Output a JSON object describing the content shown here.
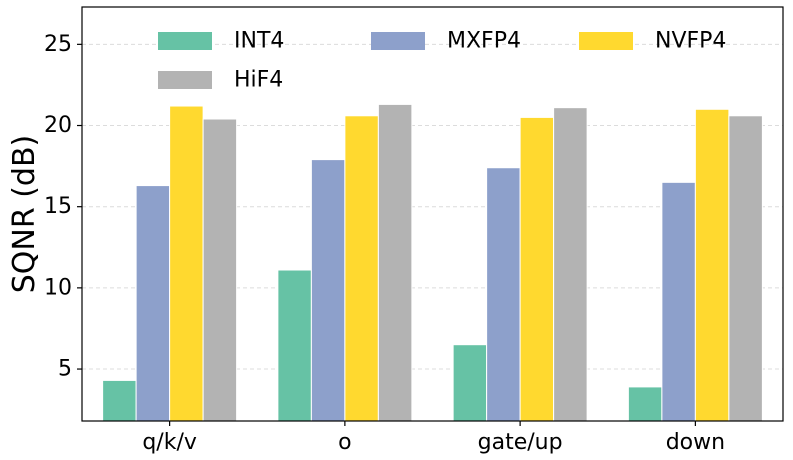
{
  "chart_data": {
    "type": "bar",
    "categories": [
      "q/k/v",
      "o",
      "gate/up",
      "down"
    ],
    "series": [
      {
        "name": "INT4",
        "color": "#66c2a5",
        "values": [
          4.3,
          11.1,
          6.5,
          3.9
        ]
      },
      {
        "name": "MXFP4",
        "color": "#8da0cb",
        "values": [
          16.3,
          17.9,
          17.4,
          16.5
        ]
      },
      {
        "name": "NVFP4",
        "color": "#ffd92f",
        "values": [
          21.2,
          20.6,
          20.5,
          21.0
        ]
      },
      {
        "name": "HiF4",
        "color": "#b3b3b3",
        "values": [
          20.4,
          21.3,
          21.1,
          20.6
        ]
      }
    ],
    "title": "",
    "xlabel": "",
    "ylabel": "SQNR (dB)",
    "ylim": [
      1.8,
      27.3
    ],
    "yticks": [
      "5",
      "10",
      "15",
      "20",
      "25"
    ],
    "grid": "horizontal-dashed",
    "legend_position": "top"
  }
}
